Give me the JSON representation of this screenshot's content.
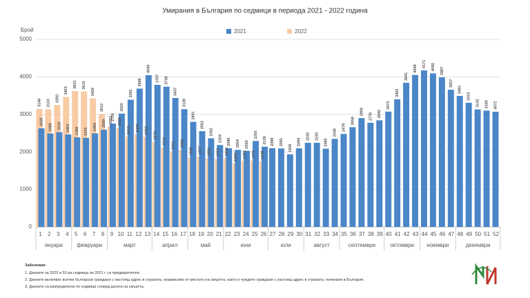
{
  "chart_data": {
    "type": "bar",
    "title": "Умирания в България по седмици в периода 2021 - 2022 година",
    "y_label": "Брой",
    "categories": [
      "1",
      "2",
      "3",
      "4",
      "5",
      "6",
      "7",
      "8",
      "9",
      "10",
      "11",
      "12",
      "13",
      "14",
      "15",
      "16",
      "17",
      "18",
      "19",
      "20",
      "21",
      "22",
      "23",
      "24",
      "25",
      "26",
      "27",
      "28",
      "29",
      "30",
      "31",
      "32",
      "33",
      "34",
      "35",
      "36",
      "37",
      "38",
      "39",
      "40",
      "41",
      "42",
      "43",
      "44",
      "45",
      "46",
      "47",
      "48",
      "49",
      "50",
      "51",
      "52"
    ],
    "series": [
      {
        "name": "2021",
        "color": "#4a86c8",
        "label_color": "#2f5f9a",
        "values": [
          2628,
          2489,
          2525,
          2464,
          2388,
          2375,
          2494,
          2589,
          2755,
          3020,
          3391,
          3686,
          4044,
          3787,
          3738,
          3437,
          3139,
          2801,
          2552,
          2362,
          2184,
          2098,
          2054,
          2030,
          2291,
          2139,
          2099,
          2091,
          1936,
          2094,
          2242,
          2243,
          2085,
          2348,
          2479,
          2658,
          2900,
          2776,
          2842,
          3073,
          3403,
          3841,
          4049,
          4171,
          4092,
          3987,
          3657,
          3491,
          3310,
          3132,
          3100,
          3072
        ]
      },
      {
        "name": "2022",
        "color": "#f9cba4",
        "label_color": "#e07a30",
        "values": [
          3146,
          3133,
          3250,
          3463,
          3623,
          3610,
          3429,
          3012,
          2682,
          2638,
          2412,
          2470,
          2402,
          2272,
          2113,
          2011,
          2056,
          1848,
          1877,
          1828,
          1817,
          1838,
          1693,
          1761,
          1771,
          1749,
          null,
          null,
          null,
          null,
          null,
          null,
          null,
          null,
          null,
          null,
          null,
          null,
          null,
          null,
          null,
          null,
          null,
          null,
          null,
          null,
          null,
          null,
          null,
          null,
          null,
          null
        ]
      }
    ],
    "groups": [
      {
        "label": "януари",
        "from": "1",
        "to": "4"
      },
      {
        "label": "февруари",
        "from": "5",
        "to": "8"
      },
      {
        "label": "март",
        "from": "9",
        "to": "13"
      },
      {
        "label": "април",
        "from": "14",
        "to": "17"
      },
      {
        "label": "май",
        "from": "18",
        "to": "21"
      },
      {
        "label": "юни",
        "from": "22",
        "to": "26"
      },
      {
        "label": "юли",
        "from": "27",
        "to": "30"
      },
      {
        "label": "август",
        "from": "31",
        "to": "34"
      },
      {
        "label": "септември",
        "from": "35",
        "to": "39"
      },
      {
        "label": "октомври",
        "from": "40",
        "to": "43"
      },
      {
        "label": "ноември",
        "from": "44",
        "to": "47"
      },
      {
        "label": "декември",
        "from": "48",
        "to": "52"
      }
    ],
    "ylim": [
      0,
      5000
    ],
    "yticks": [
      0,
      1000,
      2000,
      3000,
      4000,
      5000
    ],
    "grid": true,
    "legend": "top",
    "notes": {
      "heading": "Забележки:",
      "items": [
        "1. Данните за 2022 и 52-ра седмица на 2021 г. са предварителни.",
        "2. Данните включват всички български граждани с настоящ адрес в страната, независимо от мястото на смъртта, както и чуждите граждани с настоящ адрес в страната, починали в България.",
        "3. Данните са разпределени по седмици според датата на смъртта."
      ]
    }
  }
}
